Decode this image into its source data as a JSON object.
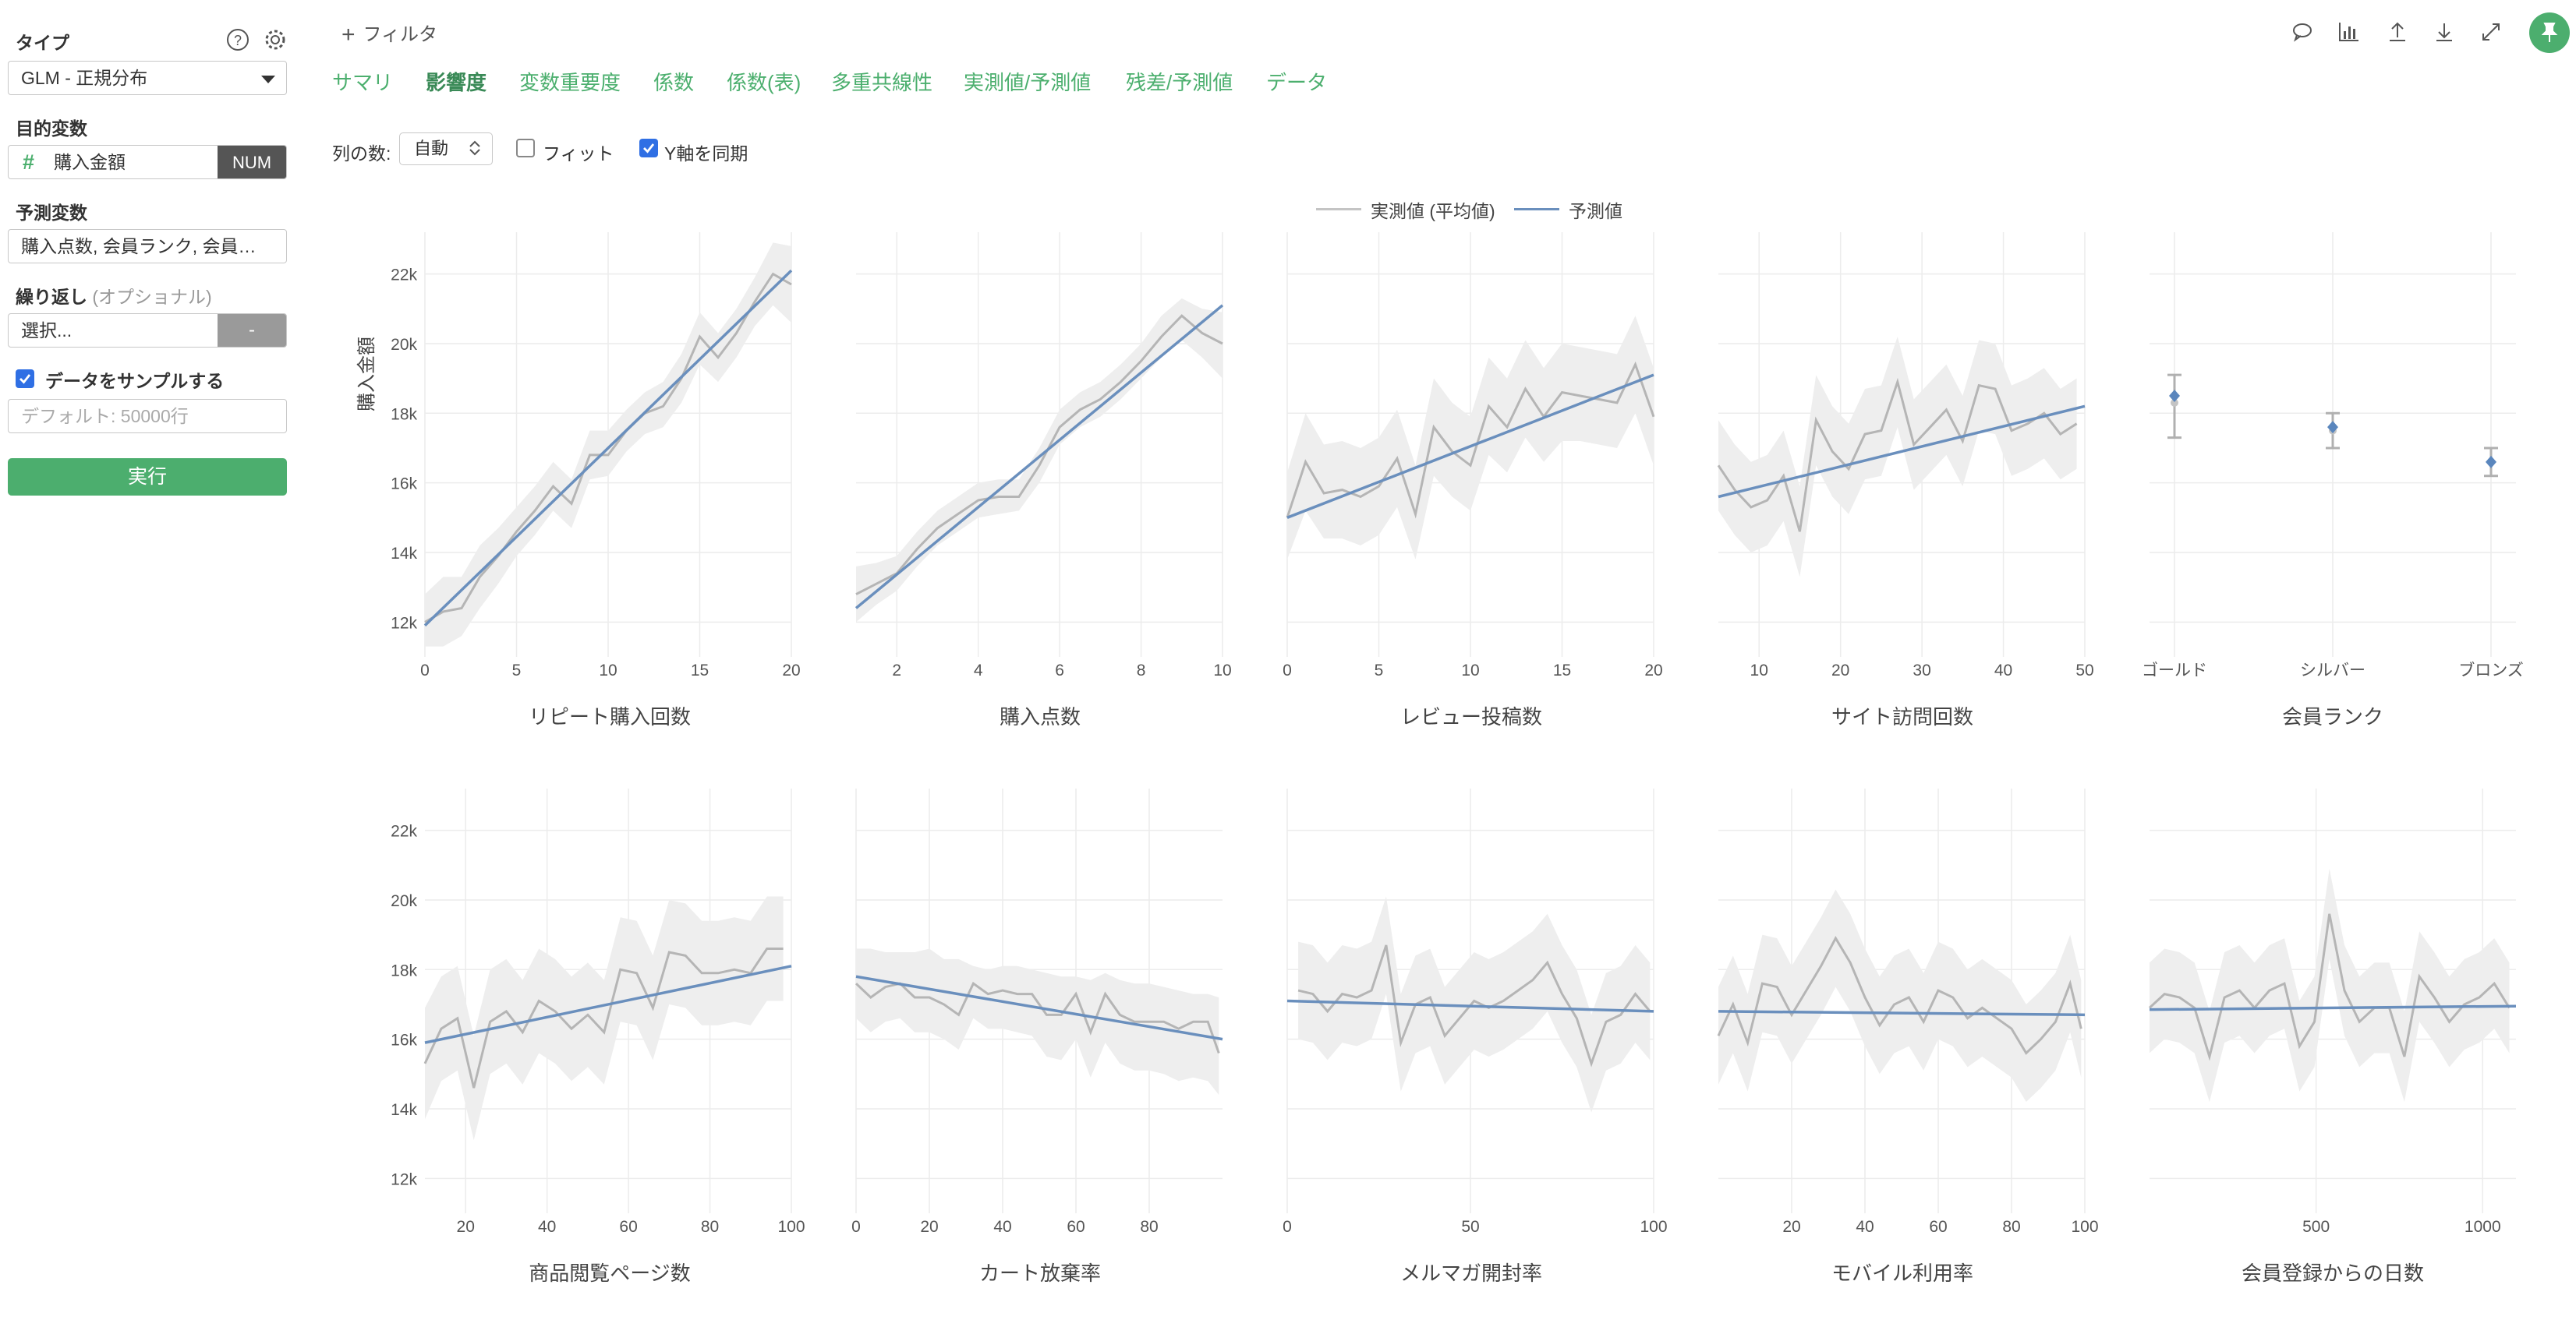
{
  "left_panel": {
    "type_label": "タイプ",
    "type_value": "GLM - 正規分布",
    "target_label": "目的変数",
    "target_value": "購入金額",
    "target_type": "NUM",
    "predictors_label": "予測変数",
    "predictors_value": "購入点数, 会員ランク, 会員…",
    "repeat_label": "繰り返し",
    "repeat_optional": "(オプショナル)",
    "repeat_select": "選択...",
    "repeat_button": "-",
    "sample_label": "データをサンプルする",
    "sample_checked": true,
    "sample_placeholder": "デフォルト: 50000行",
    "run_button": "実行"
  },
  "topbar": {
    "filter_label": "フィルタ",
    "tabs": [
      "サマリ",
      "影響度",
      "変数重要度",
      "係数",
      "係数(表)",
      "多重共線性",
      "実測値/予測値",
      "残差/予測値",
      "データ"
    ],
    "active_tab": "影響度"
  },
  "options": {
    "columns_label": "列の数:",
    "columns_value": "自動",
    "fit_label": "フィット",
    "fit_checked": false,
    "sync_y_label": "Y軸を同期",
    "sync_y_checked": true
  },
  "colors": {
    "accent": "#4cae6e",
    "actual": "#b5b5b5",
    "predicted": "#6a8fbd",
    "band": "#eeeeee"
  },
  "chart_data": {
    "legend": [
      "実測値 (平均値)",
      "予測値"
    ],
    "ylabel": "購入金額",
    "yticks": [
      "12k",
      "14k",
      "16k",
      "18k",
      "20k",
      "22k"
    ],
    "ylim": [
      11000,
      23200
    ],
    "panels": [
      {
        "title": "リピート購入回数",
        "type": "line",
        "xlim": [
          0,
          20
        ],
        "xticks": [
          0,
          5,
          10,
          15,
          20
        ],
        "x": [
          0,
          1,
          2,
          3,
          4,
          5,
          6,
          7,
          8,
          9,
          10,
          11,
          12,
          13,
          14,
          15,
          16,
          17,
          18,
          19,
          20
        ],
        "actual": [
          12000,
          12300,
          12400,
          13300,
          13900,
          14600,
          15200,
          15900,
          15400,
          16800,
          16800,
          17500,
          18000,
          18200,
          19000,
          20200,
          19600,
          20300,
          21200,
          22000,
          21700
        ],
        "band_lower": [
          11300,
          11300,
          11600,
          12400,
          13100,
          13900,
          14500,
          15200,
          14700,
          16100,
          16200,
          16900,
          17400,
          17600,
          18300,
          19400,
          18900,
          19600,
          20500,
          21100,
          20600
        ],
        "band_upper": [
          12800,
          13300,
          13300,
          14200,
          14700,
          15300,
          15900,
          16600,
          16100,
          17500,
          17500,
          18100,
          18600,
          18900,
          19700,
          20900,
          20300,
          21000,
          21900,
          22900,
          22800
        ],
        "predicted": [
          [
            0,
            11900
          ],
          [
            20,
            22100
          ]
        ]
      },
      {
        "title": "購入点数",
        "type": "line",
        "xlim": [
          1,
          10
        ],
        "xticks": [
          2,
          4,
          6,
          8,
          10
        ],
        "x": [
          1,
          1.5,
          2,
          2.5,
          3,
          3.5,
          4,
          4.5,
          5,
          5.5,
          6,
          6.5,
          7,
          7.5,
          8,
          8.5,
          9,
          9.5,
          10
        ],
        "actual": [
          12800,
          13100,
          13400,
          14100,
          14700,
          15100,
          15500,
          15600,
          15600,
          16500,
          17600,
          18100,
          18400,
          18900,
          19500,
          20200,
          20800,
          20300,
          20000
        ],
        "band_lower": [
          12000,
          12500,
          12900,
          13600,
          14200,
          14600,
          15000,
          15100,
          15200,
          16000,
          17100,
          17600,
          17900,
          18400,
          19000,
          19600,
          20100,
          19600,
          19000
        ],
        "band_upper": [
          13600,
          13700,
          13900,
          14600,
          15200,
          15600,
          16000,
          16100,
          16100,
          17000,
          18100,
          18600,
          18900,
          19400,
          20000,
          20800,
          21300,
          21000,
          20900
        ],
        "predicted": [
          [
            1,
            12400
          ],
          [
            10,
            21100
          ]
        ]
      },
      {
        "title": "レビュー投稿数",
        "type": "line",
        "xlim": [
          0,
          20
        ],
        "xticks": [
          0,
          5,
          10,
          15,
          20
        ],
        "x": [
          0,
          1,
          2,
          3,
          4,
          5,
          6,
          7,
          8,
          9,
          10,
          11,
          12,
          13,
          14,
          15,
          16,
          17,
          18,
          19,
          20
        ],
        "actual": [
          15000,
          16600,
          15700,
          15800,
          15600,
          15900,
          16700,
          15100,
          17600,
          16900,
          16500,
          18200,
          17600,
          18700,
          17900,
          18600,
          18500,
          18400,
          18300,
          19400,
          17900
        ],
        "band_lower": [
          13800,
          15200,
          14400,
          14400,
          14200,
          14500,
          15300,
          13800,
          16200,
          15600,
          15200,
          16800,
          16300,
          17300,
          16600,
          17200,
          17200,
          17100,
          17000,
          18000,
          16500
        ],
        "band_upper": [
          16300,
          18000,
          17100,
          17200,
          17000,
          17300,
          18100,
          16500,
          19000,
          18300,
          17900,
          19600,
          19000,
          20100,
          19300,
          20000,
          19900,
          19800,
          19700,
          20800,
          19300
        ],
        "predicted": [
          [
            0,
            15000
          ],
          [
            20,
            19100
          ]
        ]
      },
      {
        "title": "サイト訪問回数",
        "type": "line",
        "xlim": [
          5,
          50
        ],
        "xticks": [
          10,
          20,
          30,
          40,
          50
        ],
        "x": [
          5,
          7,
          9,
          11,
          13,
          15,
          17,
          19,
          21,
          23,
          25,
          27,
          29,
          31,
          33,
          35,
          37,
          39,
          41,
          43,
          45,
          47,
          49
        ],
        "actual": [
          16500,
          15800,
          15300,
          15500,
          16200,
          14600,
          17800,
          16900,
          16400,
          17400,
          17500,
          18900,
          17100,
          17600,
          18100,
          17200,
          18800,
          18700,
          17500,
          17700,
          18000,
          17400,
          17700
        ],
        "band_lower": [
          15200,
          14500,
          14000,
          14200,
          14900,
          13300,
          16500,
          15600,
          15100,
          16100,
          16200,
          17600,
          15800,
          16300,
          16800,
          15900,
          17500,
          17400,
          16200,
          16400,
          16700,
          16100,
          16400
        ],
        "band_upper": [
          17800,
          17100,
          16600,
          16800,
          17500,
          15900,
          19100,
          18200,
          17700,
          18700,
          18800,
          20200,
          18400,
          18900,
          19400,
          18500,
          20100,
          20000,
          18800,
          19000,
          19300,
          18700,
          19000
        ],
        "predicted": [
          [
            5,
            15600
          ],
          [
            50,
            18200
          ]
        ]
      },
      {
        "title": "会員ランク",
        "type": "point",
        "categories": [
          "ゴールド",
          "シルバー",
          "ブロンズ"
        ],
        "actual": [
          18300,
          17500,
          16600
        ],
        "err_lower": [
          17300,
          17000,
          16200
        ],
        "err_upper": [
          19100,
          18000,
          17000
        ],
        "predicted": [
          18500,
          17600,
          16600
        ]
      },
      {
        "title": "商品閲覧ページ数",
        "type": "line",
        "xlim": [
          10,
          100
        ],
        "xticks": [
          20,
          40,
          60,
          80,
          100
        ],
        "x": [
          10,
          14,
          18,
          22,
          26,
          30,
          34,
          38,
          42,
          46,
          50,
          54,
          58,
          62,
          66,
          70,
          74,
          78,
          82,
          86,
          90,
          94,
          98
        ],
        "actual": [
          15300,
          16300,
          16600,
          14600,
          16500,
          16800,
          16200,
          17100,
          16800,
          16300,
          16700,
          16200,
          18000,
          17900,
          16900,
          18500,
          18400,
          17900,
          17900,
          18000,
          17900,
          18600,
          18600
        ],
        "band_lower": [
          13700,
          14800,
          15100,
          13100,
          15000,
          15300,
          14700,
          15600,
          15300,
          14800,
          15200,
          14700,
          16500,
          16400,
          15400,
          17000,
          16900,
          16400,
          16400,
          16500,
          16400,
          17100,
          17100
        ],
        "band_upper": [
          16900,
          17800,
          18100,
          16100,
          18000,
          18300,
          17700,
          18600,
          18300,
          17800,
          18200,
          17700,
          19500,
          19400,
          18400,
          20000,
          19900,
          19400,
          19400,
          19500,
          19400,
          20100,
          20100
        ],
        "predicted": [
          [
            10,
            15900
          ],
          [
            100,
            18100
          ]
        ]
      },
      {
        "title": "カート放棄率",
        "type": "line",
        "xlim": [
          0,
          100
        ],
        "xticks": [
          0,
          20,
          40,
          60,
          80
        ],
        "x": [
          0,
          4,
          8,
          12,
          16,
          20,
          24,
          28,
          32,
          36,
          40,
          44,
          48,
          52,
          56,
          60,
          64,
          68,
          72,
          76,
          80,
          84,
          88,
          92,
          96,
          99
        ],
        "actual": [
          17600,
          17200,
          17500,
          17600,
          17200,
          17200,
          17000,
          16700,
          17600,
          17300,
          17400,
          17300,
          17300,
          16700,
          16700,
          17300,
          16200,
          17300,
          16700,
          16500,
          16500,
          16500,
          16300,
          16500,
          16500,
          15600
        ],
        "band_lower": [
          16600,
          16200,
          16500,
          16600,
          16200,
          16200,
          16000,
          15700,
          16600,
          16300,
          16300,
          16200,
          16100,
          15500,
          15400,
          16000,
          14900,
          15900,
          15300,
          15100,
          15100,
          15000,
          14800,
          14900,
          14800,
          14400
        ],
        "band_upper": [
          18600,
          18600,
          18500,
          18500,
          18500,
          18600,
          18300,
          18300,
          18100,
          18000,
          18100,
          18100,
          18000,
          17900,
          17800,
          17800,
          17700,
          17900,
          17700,
          17600,
          17600,
          17500,
          17400,
          17300,
          17300,
          17200
        ],
        "predicted": [
          [
            0,
            17800
          ],
          [
            100,
            16000
          ]
        ]
      },
      {
        "title": "メルマガ開封率",
        "type": "line",
        "xlim": [
          0,
          100
        ],
        "xticks": [
          0,
          50,
          100
        ],
        "x": [
          3,
          7,
          11,
          15,
          19,
          23,
          27,
          31,
          35,
          39,
          43,
          47,
          51,
          55,
          59,
          63,
          67,
          71,
          75,
          79,
          83,
          87,
          91,
          95,
          99
        ],
        "actual": [
          17400,
          17300,
          16800,
          17300,
          17200,
          17400,
          18700,
          15900,
          17000,
          17200,
          16100,
          16600,
          17100,
          16900,
          17100,
          17400,
          17700,
          18200,
          17300,
          16600,
          15300,
          16500,
          16700,
          17300,
          16800
        ],
        "band_lower": [
          16000,
          15900,
          15400,
          15900,
          15800,
          16000,
          17300,
          14500,
          15600,
          15800,
          14700,
          15200,
          15700,
          15500,
          15700,
          16000,
          16300,
          16800,
          15900,
          15200,
          13900,
          15100,
          15300,
          15900,
          15400
        ],
        "band_upper": [
          18800,
          18700,
          18200,
          18700,
          18600,
          18800,
          20100,
          17300,
          18400,
          18600,
          17500,
          18000,
          18500,
          18300,
          18500,
          18800,
          19100,
          19600,
          18700,
          18000,
          16700,
          17900,
          18100,
          18700,
          18200
        ],
        "predicted": [
          [
            0,
            17100
          ],
          [
            100,
            16800
          ]
        ]
      },
      {
        "title": "モバイル利用率",
        "type": "line",
        "xlim": [
          0,
          100
        ],
        "xticks": [
          20,
          40,
          60,
          80,
          100
        ],
        "x": [
          0,
          4,
          8,
          12,
          16,
          20,
          24,
          28,
          32,
          36,
          40,
          44,
          48,
          52,
          56,
          60,
          64,
          68,
          72,
          76,
          80,
          84,
          88,
          92,
          96,
          99
        ],
        "actual": [
          16100,
          17000,
          15900,
          17600,
          17500,
          16700,
          17400,
          18100,
          18900,
          18200,
          17200,
          16400,
          17000,
          17200,
          16500,
          17400,
          17200,
          16600,
          16900,
          16600,
          16300,
          15600,
          16000,
          16500,
          17600,
          16300
        ],
        "band_lower": [
          14700,
          15600,
          14500,
          16200,
          16100,
          15300,
          16000,
          16700,
          17500,
          16800,
          15800,
          15000,
          15600,
          15800,
          15100,
          16000,
          15800,
          15200,
          15500,
          15200,
          14900,
          14200,
          14600,
          15100,
          16200,
          14900
        ],
        "band_upper": [
          17500,
          18400,
          17300,
          19000,
          18900,
          18100,
          18800,
          19500,
          20300,
          19600,
          18600,
          17800,
          18400,
          18600,
          17900,
          18800,
          18600,
          18000,
          18300,
          18000,
          17700,
          17000,
          17400,
          17900,
          19000,
          17700
        ],
        "predicted": [
          [
            0,
            16800
          ],
          [
            100,
            16700
          ]
        ]
      },
      {
        "title": "会員登録からの日数",
        "type": "line",
        "xlim": [
          0,
          1100
        ],
        "xticks": [
          500,
          1000
        ],
        "x": [
          0,
          45,
          90,
          135,
          180,
          225,
          270,
          315,
          360,
          405,
          450,
          495,
          540,
          585,
          630,
          675,
          720,
          765,
          810,
          855,
          900,
          945,
          990,
          1035,
          1080
        ],
        "actual": [
          16900,
          17300,
          17200,
          16900,
          15500,
          17200,
          17400,
          16900,
          17400,
          17600,
          15800,
          16500,
          19600,
          17400,
          16500,
          16900,
          16900,
          15500,
          17800,
          17200,
          16500,
          17000,
          17200,
          17600,
          16900
        ],
        "band_lower": [
          15600,
          16000,
          15900,
          15600,
          14200,
          15900,
          16100,
          15600,
          16100,
          16300,
          14500,
          15200,
          18300,
          16100,
          15200,
          15600,
          15600,
          14200,
          16500,
          15900,
          15200,
          15700,
          15900,
          16300,
          15600
        ],
        "band_upper": [
          18200,
          18600,
          18500,
          18200,
          16800,
          18500,
          18700,
          18200,
          18700,
          18900,
          17100,
          17800,
          20900,
          18700,
          17800,
          18200,
          18200,
          16800,
          19100,
          18500,
          17800,
          18300,
          18500,
          18900,
          18200
        ],
        "predicted": [
          [
            0,
            16850
          ],
          [
            1100,
            16950
          ]
        ]
      }
    ]
  }
}
